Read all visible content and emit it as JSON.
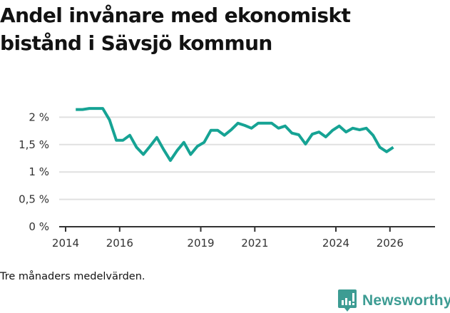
{
  "header": {
    "title_line1": "Andel invånare med ekonomiskt",
    "title_line2": "bistånd i Sävsjö kommun"
  },
  "footer": {
    "note": "Tre månaders medelvärden.",
    "brand": "Newsworthy",
    "brand_icon": "bar-chart-speech-bubble-icon"
  },
  "colors": {
    "line": "#16a394",
    "grid": "#e0e0e0",
    "axis": "#333333",
    "brand": "#3d9c93"
  },
  "chart_data": {
    "type": "line",
    "title": "Andel invånare med ekonomiskt bistånd i Sävsjö kommun",
    "subtitle": "",
    "xlabel": "",
    "ylabel": "",
    "x_ticks": [
      "2014",
      "2016",
      "2019",
      "2021",
      "2024",
      "2026"
    ],
    "y_ticks": [
      "0 %",
      "0,5 %",
      "1 %",
      "1,5 %",
      "2 %"
    ],
    "ylim": [
      0,
      2.2
    ],
    "grid": true,
    "legend": "none",
    "annotations": [
      "Tre månaders medelvärden."
    ],
    "series": [
      {
        "name": "Andel invånare med ekonomiskt bistånd (%)",
        "x": [
          2014.375,
          2014.625,
          2014.875,
          2015.125,
          2015.375,
          2015.625,
          2015.875,
          2016.125,
          2016.375,
          2016.625,
          2016.875,
          2017.125,
          2017.375,
          2017.625,
          2017.875,
          2018.125,
          2018.375,
          2018.625,
          2018.875,
          2019.125,
          2019.375,
          2019.625,
          2019.875,
          2020.125,
          2020.375,
          2020.625,
          2020.875,
          2021.125,
          2021.375,
          2021.625,
          2021.875,
          2022.125,
          2022.375,
          2022.625,
          2022.875,
          2023.125,
          2023.375,
          2023.625,
          2023.875,
          2024.125,
          2024.375,
          2024.625,
          2024.875,
          2025.125,
          2025.375,
          2025.625,
          2025.875,
          2026.125
        ],
        "values": [
          2.14,
          2.14,
          2.16,
          2.16,
          2.16,
          1.95,
          1.58,
          1.58,
          1.67,
          1.45,
          1.32,
          1.47,
          1.63,
          1.41,
          1.21,
          1.39,
          1.54,
          1.32,
          1.47,
          1.54,
          1.76,
          1.76,
          1.67,
          1.77,
          1.89,
          1.85,
          1.8,
          1.89,
          1.89,
          1.89,
          1.8,
          1.84,
          1.71,
          1.68,
          1.51,
          1.69,
          1.73,
          1.64,
          1.76,
          1.84,
          1.73,
          1.8,
          1.77,
          1.8,
          1.67,
          1.45,
          1.37,
          1.45
        ]
      }
    ]
  }
}
